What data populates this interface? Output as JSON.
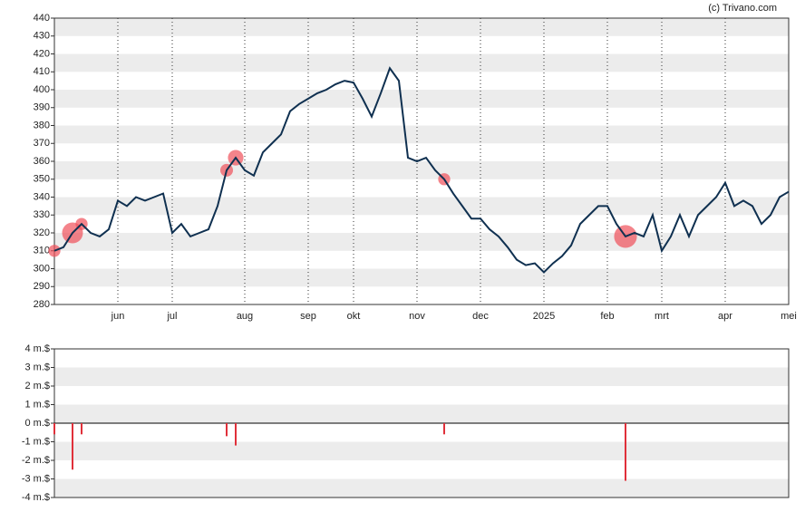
{
  "copyright": "(c) Trivano.com",
  "chart_data": [
    {
      "type": "line",
      "color": "#0f3050",
      "marker_color": "#f0505a",
      "ylim": [
        280,
        440
      ],
      "yticks": [
        280,
        290,
        300,
        310,
        320,
        330,
        340,
        350,
        360,
        370,
        380,
        390,
        400,
        410,
        420,
        430,
        440
      ],
      "categories": [
        null,
        null,
        null,
        null,
        null,
        null,
        null,
        "jun",
        null,
        null,
        null,
        null,
        null,
        "jul",
        null,
        null,
        null,
        null,
        null,
        null,
        null,
        "aug",
        null,
        null,
        null,
        null,
        null,
        null,
        "sep",
        null,
        null,
        null,
        null,
        "okt",
        null,
        null,
        null,
        null,
        null,
        null,
        "nov",
        null,
        null,
        null,
        null,
        null,
        null,
        "dec",
        null,
        null,
        null,
        null,
        null,
        null,
        "2025",
        null,
        null,
        null,
        null,
        null,
        null,
        "feb",
        null,
        null,
        null,
        null,
        null,
        "mrt",
        null,
        null,
        null,
        null,
        null,
        null,
        "apr",
        null,
        null,
        null,
        null,
        null,
        null,
        "mei"
      ],
      "values": [
        310,
        312,
        320,
        325,
        320,
        318,
        322,
        338,
        335,
        340,
        338,
        340,
        342,
        320,
        325,
        318,
        320,
        322,
        335,
        355,
        362,
        355,
        352,
        365,
        370,
        375,
        388,
        392,
        395,
        398,
        400,
        403,
        405,
        404,
        395,
        385,
        398,
        412,
        405,
        362,
        360,
        362,
        355,
        350,
        342,
        335,
        328,
        328,
        322,
        318,
        312,
        305,
        302,
        303,
        298,
        303,
        307,
        313,
        325,
        330,
        335,
        335,
        325,
        318,
        320,
        318,
        330,
        310,
        318,
        330,
        318,
        330,
        335,
        340,
        348,
        335,
        338,
        335,
        325,
        330,
        340,
        343
      ]
    },
    {
      "type": "bar",
      "color": "#e0303a",
      "ylim": [
        -4,
        4
      ],
      "yticks": [
        {
          "value": -4,
          "label": "-4 m.$"
        },
        {
          "value": -3,
          "label": "-3 m.$"
        },
        {
          "value": -2,
          "label": "-2 m.$"
        },
        {
          "value": -1,
          "label": "-1 m.$"
        },
        {
          "value": 0,
          "label": "0 m.$"
        },
        {
          "value": 1,
          "label": "1 m.$"
        },
        {
          "value": 2,
          "label": "2 m.$"
        },
        {
          "value": 3,
          "label": "3 m.$"
        },
        {
          "value": 4,
          "label": "4 m.$"
        }
      ],
      "values": [
        -0.6,
        null,
        -2.5,
        -0.6,
        null,
        null,
        null,
        null,
        null,
        null,
        null,
        null,
        null,
        null,
        null,
        null,
        null,
        null,
        null,
        -0.7,
        -1.2,
        null,
        null,
        null,
        null,
        null,
        null,
        null,
        null,
        null,
        null,
        null,
        null,
        null,
        null,
        null,
        null,
        null,
        null,
        null,
        null,
        null,
        null,
        -0.6,
        null,
        null,
        null,
        null,
        null,
        null,
        null,
        null,
        null,
        null,
        null,
        null,
        null,
        null,
        null,
        null,
        null,
        null,
        null,
        -3.1,
        null,
        null,
        null,
        null,
        null,
        null,
        null,
        null,
        null,
        null,
        null,
        null,
        null,
        null,
        null,
        null,
        null,
        null
      ]
    }
  ]
}
